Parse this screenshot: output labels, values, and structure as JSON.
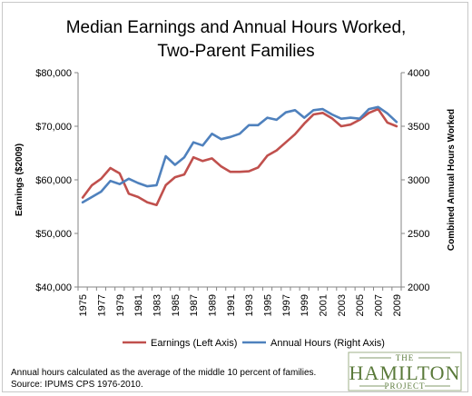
{
  "colors": {
    "earnings": "#c0504d",
    "hours": "#4f81bd",
    "axis": "#868686",
    "grid": "#e6e6e6",
    "logo": "#5a7a3a"
  },
  "note": {
    "line1": "Annual hours calculated as the average of the middle 10 percent of families.",
    "line2": "Source: IPUMS CPS 1976-2010."
  },
  "logo": {
    "top": "THE",
    "main": "HAMILTON",
    "bottom": "PROJECT"
  },
  "chart_data": {
    "type": "line",
    "title": [
      "Median Earnings and Annual Hours Worked,",
      "Two-Parent Families"
    ],
    "xlabel": "",
    "ylabel_left": "Earnings ($2009)",
    "ylabel_right": "Combined Annual Hours Worked",
    "x": [
      1975,
      1976,
      1977,
      1978,
      1979,
      1980,
      1981,
      1982,
      1983,
      1984,
      1985,
      1986,
      1987,
      1988,
      1989,
      1990,
      1991,
      1992,
      1993,
      1994,
      1995,
      1996,
      1997,
      1998,
      1999,
      2000,
      2001,
      2002,
      2003,
      2004,
      2005,
      2006,
      2007,
      2008,
      2009
    ],
    "x_tick_labels": [
      "1975",
      "1977",
      "1979",
      "1981",
      "1983",
      "1985",
      "1987",
      "1989",
      "1991",
      "1993",
      "1995",
      "1997",
      "1999",
      "2001",
      "2003",
      "2005",
      "2007",
      "2009"
    ],
    "y_left_ticks": [
      "$40,000",
      "$50,000",
      "$60,000",
      "$70,000",
      "$80,000"
    ],
    "y_right_ticks": [
      "2000",
      "2500",
      "3000",
      "3500",
      "4000"
    ],
    "ylim_left": [
      40000,
      80000
    ],
    "ylim_right": [
      2000,
      4000
    ],
    "grid": false,
    "legend_position": "bottom",
    "series": [
      {
        "name": "Earnings (Left Axis)",
        "axis": "left",
        "values": [
          56700,
          59000,
          60200,
          62200,
          61200,
          57400,
          56800,
          55800,
          55300,
          59000,
          60500,
          61000,
          64200,
          63500,
          64000,
          62500,
          61500,
          61500,
          61600,
          62300,
          64500,
          65500,
          67000,
          68500,
          70500,
          72200,
          72500,
          71500,
          70000,
          70300,
          71200,
          72500,
          73200,
          70700,
          70000
        ]
      },
      {
        "name": "Annual Hours (Right Axis)",
        "axis": "right",
        "values": [
          2790,
          2840,
          2890,
          2990,
          2960,
          3010,
          2970,
          2940,
          2950,
          3220,
          3140,
          3210,
          3350,
          3320,
          3430,
          3380,
          3400,
          3430,
          3510,
          3510,
          3580,
          3560,
          3630,
          3650,
          3580,
          3650,
          3660,
          3610,
          3570,
          3580,
          3570,
          3660,
          3680,
          3620,
          3540
        ]
      }
    ]
  }
}
